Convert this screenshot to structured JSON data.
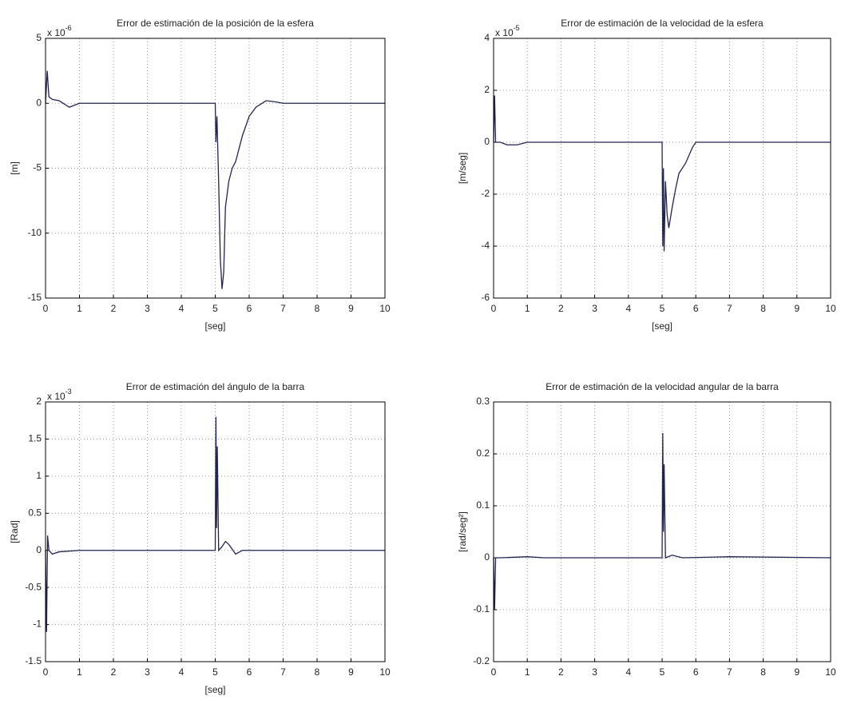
{
  "chart_data": [
    {
      "type": "line",
      "title": "Error de estimación de la posición de la esfera",
      "xlabel": "[seg]",
      "ylabel": "[m]",
      "exponent_label": {
        "base": "x 10",
        "exponent": "-6"
      },
      "xlim": [
        0,
        10
      ],
      "xticks": [
        0,
        1,
        2,
        3,
        4,
        5,
        6,
        7,
        8,
        9,
        10
      ],
      "ylim": [
        -15,
        5
      ],
      "yticks": [
        5,
        0,
        -5,
        -10,
        -15
      ],
      "grid": true,
      "x": [
        0,
        0.05,
        0.1,
        0.2,
        0.4,
        0.7,
        1,
        5,
        5.02,
        5.05,
        5.1,
        5.15,
        5.2,
        5.25,
        5.3,
        5.4,
        5.5,
        5.6,
        5.8,
        6,
        6.2,
        6.5,
        6.8,
        7,
        10
      ],
      "series": [
        {
          "color": "#23234f",
          "values": [
            0,
            2.5,
            0.5,
            0.3,
            0.2,
            -0.3,
            0,
            0,
            -3,
            -1,
            -6,
            -12,
            -14.3,
            -13,
            -8,
            -6,
            -5,
            -4.5,
            -2.5,
            -1,
            -0.3,
            0.2,
            0.1,
            0,
            0
          ]
        }
      ]
    },
    {
      "type": "line",
      "title": "Error de estimación de la velocidad de la esfera",
      "xlabel": "[seg]",
      "ylabel": "[m/seg]",
      "exponent_label": {
        "base": "x 10",
        "exponent": "-5"
      },
      "xlim": [
        0,
        10
      ],
      "xticks": [
        0,
        1,
        2,
        3,
        4,
        5,
        6,
        7,
        8,
        9,
        10
      ],
      "ylim": [
        -6,
        4
      ],
      "yticks": [
        4,
        2,
        0,
        -2,
        -4,
        -6
      ],
      "grid": true,
      "x": [
        0,
        0.03,
        0.06,
        0.2,
        0.4,
        0.7,
        1,
        5,
        5.02,
        5.04,
        5.06,
        5.1,
        5.15,
        5.2,
        5.3,
        5.4,
        5.5,
        5.7,
        5.9,
        6,
        10
      ],
      "series": [
        {
          "color": "#23234f",
          "values": [
            0,
            1.8,
            0,
            0,
            -0.1,
            -0.1,
            0,
            0,
            -4,
            -1,
            -4.2,
            -1.5,
            -2.8,
            -3.3,
            -2.5,
            -1.8,
            -1.2,
            -0.8,
            -0.2,
            0,
            0
          ]
        }
      ]
    },
    {
      "type": "line",
      "title": "Error de estimación del ángulo de la barra",
      "xlabel": "[seg]",
      "ylabel": "[Rad]",
      "exponent_label": {
        "base": "x 10",
        "exponent": "-3"
      },
      "xlim": [
        0,
        10
      ],
      "xticks": [
        0,
        1,
        2,
        3,
        4,
        5,
        6,
        7,
        8,
        9,
        10
      ],
      "ylim": [
        -1.5,
        2
      ],
      "yticks": [
        2,
        1.5,
        1,
        0.5,
        0,
        -0.5,
        -1,
        -1.5
      ],
      "grid": true,
      "x": [
        0,
        0.03,
        0.06,
        0.1,
        0.2,
        0.4,
        1,
        5,
        5.02,
        5.04,
        5.06,
        5.1,
        5.2,
        5.3,
        5.4,
        5.6,
        5.8,
        6,
        10
      ],
      "series": [
        {
          "color": "#23234f",
          "values": [
            0,
            -1.1,
            0.2,
            0,
            -0.05,
            -0.02,
            0,
            0,
            1.8,
            0.3,
            1.4,
            0,
            0.05,
            0.12,
            0.08,
            -0.05,
            0,
            0,
            0
          ]
        }
      ]
    },
    {
      "type": "line",
      "title": "Error de estimación de la velocidad angular de la barra",
      "ylabel": "[rad/seg²]",
      "xlim": [
        0,
        10
      ],
      "xticks": [
        0,
        1,
        2,
        3,
        4,
        5,
        6,
        7,
        8,
        9,
        10
      ],
      "ylim": [
        -0.2,
        0.3
      ],
      "yticks": [
        0.3,
        0.2,
        0.1,
        0,
        -0.1,
        -0.2
      ],
      "grid": true,
      "x": [
        0,
        0.03,
        0.06,
        0.2,
        1,
        1.5,
        5,
        5.02,
        5.04,
        5.06,
        5.1,
        5.3,
        5.6,
        7,
        10
      ],
      "series": [
        {
          "color": "#23234f",
          "values": [
            0,
            -0.1,
            0,
            0,
            0.002,
            0,
            0,
            0.24,
            0.05,
            0.18,
            0,
            0.005,
            0,
            0.002,
            0
          ]
        }
      ]
    }
  ]
}
